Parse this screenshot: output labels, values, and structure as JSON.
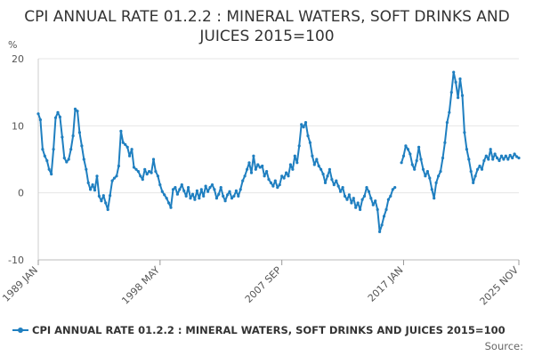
{
  "chart_data": {
    "type": "line",
    "title": "CPI ANNUAL RATE 01.2.2 : MINERAL WATERS, SOFT DRINKS AND JUICES 2015=100",
    "ylabel": "%",
    "ylim": [
      -10,
      20
    ],
    "yticks": [
      20,
      10,
      0,
      -10
    ],
    "x_range": [
      "1989-01",
      "2025-11"
    ],
    "x_tick_labels": [
      "1989 JAN",
      "1998 MAY",
      "2007 SEP",
      "2017 JAN",
      "2025 NOV"
    ],
    "x_tick_dates": [
      "1989-01",
      "1998-05",
      "2007-09",
      "2017-01",
      "2025-11"
    ],
    "grid": true,
    "legend_position": "bottom-left",
    "color": "#1f7fc0",
    "series": [
      {
        "name": "CPI ANNUAL RATE 01.2.2 : MINERAL WATERS, SOFT DRINKS AND JUICES 2015=100",
        "points": [
          [
            "1989-01",
            11.8
          ],
          [
            "1989-03",
            10.9
          ],
          [
            "1989-05",
            6.5
          ],
          [
            "1989-07",
            5.5
          ],
          [
            "1989-09",
            4.8
          ],
          [
            "1989-11",
            3.5
          ],
          [
            "1990-01",
            2.8
          ],
          [
            "1990-03",
            6.5
          ],
          [
            "1990-05",
            11.2
          ],
          [
            "1990-07",
            12.0
          ],
          [
            "1990-09",
            11.3
          ],
          [
            "1990-11",
            8.3
          ],
          [
            "1991-01",
            5.2
          ],
          [
            "1991-03",
            4.6
          ],
          [
            "1991-05",
            5.0
          ],
          [
            "1991-07",
            6.5
          ],
          [
            "1991-09",
            8.5
          ],
          [
            "1991-11",
            12.5
          ],
          [
            "1992-01",
            12.2
          ],
          [
            "1992-03",
            9.0
          ],
          [
            "1992-05",
            7.0
          ],
          [
            "1992-07",
            5.0
          ],
          [
            "1992-09",
            3.5
          ],
          [
            "1992-11",
            1.5
          ],
          [
            "1993-01",
            0.5
          ],
          [
            "1993-03",
            1.2
          ],
          [
            "1993-05",
            0.4
          ],
          [
            "1993-07",
            2.5
          ],
          [
            "1993-09",
            -0.5
          ],
          [
            "1993-11",
            -1.2
          ],
          [
            "1994-01",
            -0.4
          ],
          [
            "1994-03",
            -1.5
          ],
          [
            "1994-05",
            -2.5
          ],
          [
            "1994-07",
            -0.4
          ],
          [
            "1994-09",
            1.8
          ],
          [
            "1994-11",
            2.2
          ],
          [
            "1995-01",
            2.5
          ],
          [
            "1995-03",
            4.0
          ],
          [
            "1995-05",
            9.2
          ],
          [
            "1995-07",
            7.5
          ],
          [
            "1995-09",
            7.2
          ],
          [
            "1995-11",
            6.8
          ],
          [
            "1996-01",
            5.5
          ],
          [
            "1996-03",
            6.5
          ],
          [
            "1996-05",
            3.8
          ],
          [
            "1996-07",
            3.5
          ],
          [
            "1996-09",
            3.2
          ],
          [
            "1996-11",
            2.5
          ],
          [
            "1997-01",
            2.0
          ],
          [
            "1997-03",
            3.5
          ],
          [
            "1997-05",
            2.8
          ],
          [
            "1997-07",
            3.2
          ],
          [
            "1997-09",
            3.0
          ],
          [
            "1997-11",
            5.0
          ],
          [
            "1998-01",
            3.2
          ],
          [
            "1998-03",
            2.5
          ],
          [
            "1998-05",
            1.2
          ],
          [
            "1998-07",
            0.2
          ],
          [
            "1998-09",
            -0.3
          ],
          [
            "1998-11",
            -0.8
          ],
          [
            "1999-01",
            -1.5
          ],
          [
            "1999-03",
            -2.2
          ],
          [
            "1999-05",
            0.5
          ],
          [
            "1999-07",
            0.8
          ],
          [
            "1999-09",
            -0.2
          ],
          [
            "1999-11",
            0.5
          ],
          [
            "2000-01",
            1.2
          ],
          [
            "2000-03",
            0.3
          ],
          [
            "2000-05",
            -0.5
          ],
          [
            "2000-07",
            0.8
          ],
          [
            "2000-09",
            -0.8
          ],
          [
            "2000-11",
            -0.2
          ],
          [
            "2001-01",
            -1.0
          ],
          [
            "2001-03",
            0.3
          ],
          [
            "2001-05",
            -0.8
          ],
          [
            "2001-07",
            0.5
          ],
          [
            "2001-09",
            -0.5
          ],
          [
            "2001-11",
            1.0
          ],
          [
            "2002-01",
            0.2
          ],
          [
            "2002-03",
            0.8
          ],
          [
            "2002-05",
            1.2
          ],
          [
            "2002-07",
            0.5
          ],
          [
            "2002-09",
            -0.8
          ],
          [
            "2002-11",
            -0.2
          ],
          [
            "2003-01",
            0.8
          ],
          [
            "2003-03",
            -0.5
          ],
          [
            "2003-05",
            -1.2
          ],
          [
            "2003-07",
            -0.3
          ],
          [
            "2003-09",
            0.2
          ],
          [
            "2003-11",
            -0.8
          ],
          [
            "2004-01",
            -0.5
          ],
          [
            "2004-03",
            0.3
          ],
          [
            "2004-05",
            -0.5
          ],
          [
            "2004-07",
            0.5
          ],
          [
            "2004-09",
            1.8
          ],
          [
            "2004-11",
            2.5
          ],
          [
            "2005-01",
            3.5
          ],
          [
            "2005-03",
            4.5
          ],
          [
            "2005-05",
            3.0
          ],
          [
            "2005-07",
            5.5
          ],
          [
            "2005-09",
            3.5
          ],
          [
            "2005-11",
            4.2
          ],
          [
            "2006-01",
            3.8
          ],
          [
            "2006-03",
            4.0
          ],
          [
            "2006-05",
            2.5
          ],
          [
            "2006-07",
            3.2
          ],
          [
            "2006-09",
            2.0
          ],
          [
            "2006-11",
            1.5
          ],
          [
            "2007-01",
            1.0
          ],
          [
            "2007-03",
            1.8
          ],
          [
            "2007-05",
            0.8
          ],
          [
            "2007-07",
            1.2
          ],
          [
            "2007-09",
            2.5
          ],
          [
            "2007-11",
            2.2
          ],
          [
            "2008-01",
            3.0
          ],
          [
            "2008-03",
            2.5
          ],
          [
            "2008-05",
            4.2
          ],
          [
            "2008-07",
            3.5
          ],
          [
            "2008-09",
            5.5
          ],
          [
            "2008-11",
            4.5
          ],
          [
            "2009-01",
            7.0
          ],
          [
            "2009-03",
            10.2
          ],
          [
            "2009-05",
            9.8
          ],
          [
            "2009-07",
            10.5
          ],
          [
            "2009-09",
            8.5
          ],
          [
            "2009-11",
            7.5
          ],
          [
            "2010-01",
            5.5
          ],
          [
            "2010-03",
            4.2
          ],
          [
            "2010-05",
            5.0
          ],
          [
            "2010-07",
            4.0
          ],
          [
            "2010-09",
            3.5
          ],
          [
            "2010-11",
            2.8
          ],
          [
            "2011-01",
            1.5
          ],
          [
            "2011-03",
            2.5
          ],
          [
            "2011-05",
            3.5
          ],
          [
            "2011-07",
            2.0
          ],
          [
            "2011-09",
            1.2
          ],
          [
            "2011-11",
            1.8
          ],
          [
            "2012-01",
            1.0
          ],
          [
            "2012-03",
            0.2
          ],
          [
            "2012-05",
            0.8
          ],
          [
            "2012-07",
            -0.5
          ],
          [
            "2012-09",
            -1.0
          ],
          [
            "2012-11",
            -0.3
          ],
          [
            "2013-01",
            -1.5
          ],
          [
            "2013-03",
            -0.8
          ],
          [
            "2013-05",
            -2.2
          ],
          [
            "2013-07",
            -1.5
          ],
          [
            "2013-09",
            -2.5
          ],
          [
            "2013-11",
            -1.0
          ],
          [
            "2014-01",
            -0.5
          ],
          [
            "2014-03",
            0.8
          ],
          [
            "2014-05",
            0.2
          ],
          [
            "2014-07",
            -0.8
          ],
          [
            "2014-09",
            -1.8
          ],
          [
            "2014-11",
            -1.2
          ],
          [
            "2015-01",
            -2.5
          ],
          [
            "2015-03",
            -5.8
          ],
          [
            "2015-05",
            -4.8
          ],
          [
            "2015-07",
            -3.5
          ],
          [
            "2015-09",
            -2.5
          ],
          [
            "2015-11",
            -1.0
          ],
          [
            "2016-01",
            -0.5
          ],
          [
            "2016-03",
            0.5
          ],
          [
            "2016-05",
            0.8
          ],
          [
            "2016-11",
            4.5
          ],
          [
            "2017-01",
            5.5
          ],
          [
            "2017-03",
            7.0
          ],
          [
            "2017-05",
            6.5
          ],
          [
            "2017-07",
            5.8
          ],
          [
            "2017-09",
            4.2
          ],
          [
            "2017-11",
            3.5
          ],
          [
            "2018-01",
            4.8
          ],
          [
            "2018-03",
            6.8
          ],
          [
            "2018-05",
            5.0
          ],
          [
            "2018-07",
            3.5
          ],
          [
            "2018-09",
            2.5
          ],
          [
            "2018-11",
            3.2
          ],
          [
            "2019-01",
            2.2
          ],
          [
            "2019-03",
            0.5
          ],
          [
            "2019-05",
            -0.8
          ],
          [
            "2019-07",
            1.5
          ],
          [
            "2019-09",
            2.5
          ],
          [
            "2019-11",
            3.2
          ],
          [
            "2020-01",
            5.2
          ],
          [
            "2020-03",
            7.5
          ],
          [
            "2020-05",
            10.5
          ],
          [
            "2020-07",
            12.0
          ],
          [
            "2020-09",
            15.0
          ],
          [
            "2020-11",
            18.0
          ],
          [
            "2021-01",
            16.5
          ],
          [
            "2021-03",
            14.2
          ],
          [
            "2021-05",
            17.0
          ],
          [
            "2021-07",
            14.5
          ],
          [
            "2021-09",
            9.0
          ],
          [
            "2021-11",
            6.5
          ],
          [
            "2022-01",
            5.0
          ],
          [
            "2022-03",
            3.2
          ],
          [
            "2022-05",
            1.5
          ],
          [
            "2022-07",
            2.5
          ],
          [
            "2022-09",
            3.5
          ],
          [
            "2022-11",
            4.0
          ],
          [
            "2023-01",
            3.5
          ],
          [
            "2023-03",
            4.8
          ],
          [
            "2023-05",
            5.5
          ],
          [
            "2023-07",
            5.0
          ],
          [
            "2023-09",
            6.5
          ],
          [
            "2023-11",
            5.0
          ],
          [
            "2024-01",
            5.8
          ],
          [
            "2024-03",
            5.2
          ],
          [
            "2024-05",
            4.8
          ],
          [
            "2024-07",
            5.5
          ],
          [
            "2024-09",
            5.0
          ],
          [
            "2024-11",
            5.5
          ],
          [
            "2025-01",
            5.0
          ],
          [
            "2025-03",
            5.6
          ],
          [
            "2025-05",
            5.2
          ],
          [
            "2025-07",
            5.8
          ],
          [
            "2025-09",
            5.4
          ],
          [
            "2025-11",
            5.2
          ]
        ]
      }
    ]
  },
  "legend": {
    "label": "CPI ANNUAL RATE 01.2.2 : MINERAL WATERS, SOFT DRINKS AND JUICES 2015=100"
  },
  "source": {
    "label": "Source:"
  }
}
